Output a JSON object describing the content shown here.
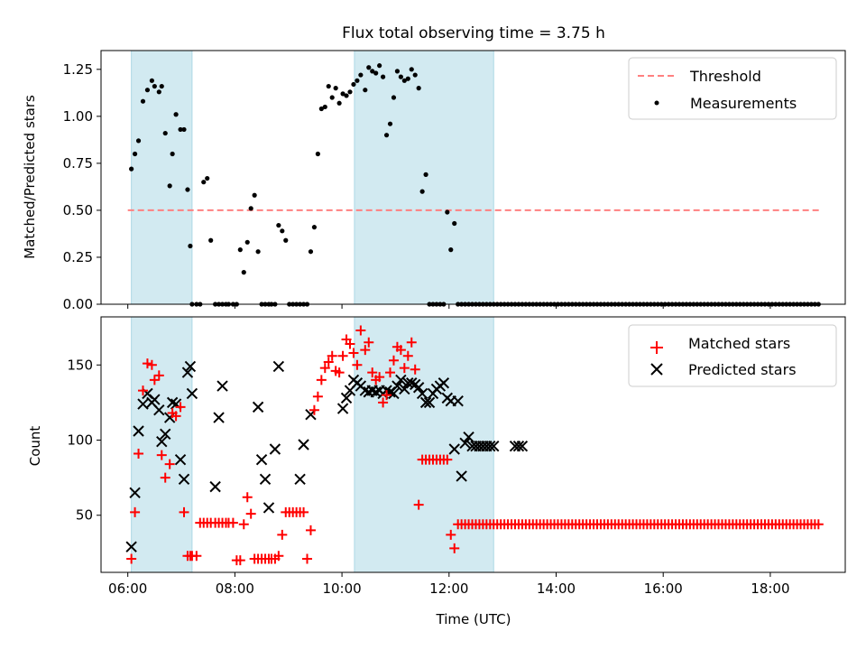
{
  "title": "Flux total observing time = 3.75 h",
  "colors": {
    "band": "#add8e6",
    "threshold": "#ff8080",
    "measurement": "#000000",
    "matched": "#ff0000",
    "predicted": "#000000"
  },
  "chart_data": [
    {
      "type": "scatter",
      "ylabel": "Matched/Predicted stars",
      "xlim_hours": [
        5.5,
        19.4
      ],
      "ylim": [
        0.0,
        1.35
      ],
      "yticks": [
        0.0,
        0.25,
        0.5,
        0.75,
        1.0,
        1.25
      ],
      "ytick_labels": [
        "0.00",
        "0.25",
        "0.50",
        "0.75",
        "1.00",
        "1.25"
      ],
      "grid": false,
      "legend_position": "upper-right",
      "legend": [
        "Threshold",
        "Measurements"
      ],
      "threshold": {
        "name": "Threshold",
        "y": 0.5,
        "x_from": "06:00",
        "x_to": "18:56"
      },
      "shaded_intervals": [
        [
          "06:04",
          "07:12"
        ],
        [
          "10:14",
          "12:50"
        ]
      ],
      "series": [
        {
          "name": "Measurements",
          "x": [
            "06:04",
            "06:08",
            "06:12",
            "06:17",
            "06:22",
            "06:27",
            "06:30",
            "06:35",
            "06:38",
            "06:42",
            "06:47",
            "06:50",
            "06:54",
            "06:59",
            "07:03",
            "07:07",
            "07:10",
            "07:12",
            "07:17",
            "07:21",
            "07:25",
            "07:29",
            "07:33",
            "07:38",
            "07:42",
            "07:46",
            "07:50",
            "07:53",
            "07:58",
            "08:02",
            "08:06",
            "08:10",
            "08:14",
            "08:18",
            "08:22",
            "08:26",
            "08:30",
            "08:34",
            "08:38",
            "08:41",
            "08:45",
            "08:49",
            "08:53",
            "08:57",
            "09:01",
            "09:05",
            "09:09",
            "09:13",
            "09:17",
            "09:21",
            "09:25",
            "09:29",
            "09:33",
            "09:37",
            "09:41",
            "09:45",
            "09:49",
            "09:53",
            "09:57",
            "10:01",
            "10:05",
            "10:09",
            "10:13",
            "10:17",
            "10:21",
            "10:26",
            "10:30",
            "10:34",
            "10:38",
            "10:42",
            "10:46",
            "10:50",
            "10:54",
            "10:58",
            "11:02",
            "11:06",
            "11:10",
            "11:14",
            "11:18",
            "11:22",
            "11:26",
            "11:30",
            "11:34",
            "11:38",
            "11:42",
            "11:46",
            "11:50",
            "11:54",
            "11:58",
            "12:02",
            "12:06",
            "12:10",
            "12:14",
            "12:18",
            "12:22",
            "12:26",
            "12:30",
            "12:34",
            "12:38",
            "12:42",
            "12:46",
            "12:50",
            "12:54",
            "12:58",
            "13:02",
            "13:06",
            "13:10",
            "13:14",
            "13:18",
            "13:22",
            "13:26"
          ],
          "y": [
            0.72,
            0.8,
            0.87,
            1.08,
            1.14,
            1.19,
            1.16,
            1.13,
            1.16,
            0.91,
            0.63,
            0.8,
            1.01,
            0.93,
            0.93,
            0.61,
            0.31,
            0.0,
            0.0,
            0.0,
            0.65,
            0.67,
            0.34,
            0.0,
            0.0,
            0.0,
            0.0,
            0.0,
            0.0,
            0.0,
            0.29,
            0.17,
            0.33,
            0.51,
            0.58,
            0.28,
            0.0,
            0.0,
            0.0,
            0.0,
            0.0,
            0.42,
            0.39,
            0.34,
            0.0,
            0.0,
            0.0,
            0.0,
            0.0,
            0.0,
            0.28,
            0.41,
            0.8,
            1.04,
            1.05,
            1.16,
            1.1,
            1.15,
            1.07,
            1.12,
            1.11,
            1.13,
            1.17,
            1.19,
            1.22,
            1.14,
            1.26,
            1.24,
            1.23,
            1.27,
            1.21,
            0.9,
            0.96,
            1.1,
            1.24,
            1.21,
            1.19,
            1.2,
            1.25,
            1.22,
            1.15,
            0.6,
            0.69,
            0.0,
            0.0,
            0.0,
            0.0,
            0.0,
            0.49,
            0.29,
            0.43,
            0.0,
            0.0,
            0.0,
            0.0,
            0.0,
            0.0,
            0.0,
            0.0,
            0.0,
            0.0,
            0.0,
            0.0,
            0.0,
            0.0,
            0.0,
            0.0,
            0.0,
            0.0,
            0.0,
            0.0
          ]
        }
      ],
      "zero_run": {
        "name": "Measurements",
        "y": 0.0,
        "x_from": "13:26",
        "x_to": "18:56",
        "step_minutes": 4
      }
    },
    {
      "type": "scatter",
      "xlabel": "Time (UTC)",
      "ylabel": "Count",
      "xlim_hours": [
        5.5,
        19.4
      ],
      "ylim": [
        12,
        182
      ],
      "yticks": [
        50,
        100,
        150
      ],
      "ytick_labels": [
        "50",
        "100",
        "150"
      ],
      "xticks": [
        "06:00",
        "08:00",
        "10:00",
        "12:00",
        "14:00",
        "16:00",
        "18:00"
      ],
      "grid": false,
      "legend_position": "upper-right",
      "legend": [
        "Matched stars",
        "Predicted stars"
      ],
      "shaded_intervals": [
        [
          "06:04",
          "07:12"
        ],
        [
          "10:14",
          "12:50"
        ]
      ],
      "series": [
        {
          "name": "Matched stars",
          "marker": "plus",
          "x": [
            "06:04",
            "06:08",
            "06:12",
            "06:17",
            "06:22",
            "06:27",
            "06:30",
            "06:35",
            "06:38",
            "06:42",
            "06:47",
            "06:50",
            "06:54",
            "06:59",
            "07:03",
            "07:07",
            "07:10",
            "07:12",
            "07:17",
            "07:21",
            "07:25",
            "07:29",
            "07:33",
            "07:38",
            "07:42",
            "07:46",
            "07:50",
            "07:53",
            "07:58",
            "08:02",
            "08:06",
            "08:10",
            "08:14",
            "08:18",
            "08:22",
            "08:26",
            "08:30",
            "08:34",
            "08:38",
            "08:41",
            "08:45",
            "08:49",
            "08:53",
            "08:57",
            "09:01",
            "09:05",
            "09:09",
            "09:13",
            "09:17",
            "09:21",
            "09:25",
            "09:29",
            "09:33",
            "09:37",
            "09:41",
            "09:45",
            "09:49",
            "09:53",
            "09:57",
            "10:01",
            "10:05",
            "10:09",
            "10:13",
            "10:17",
            "10:21",
            "10:26",
            "10:30",
            "10:34",
            "10:38",
            "10:42",
            "10:46",
            "10:50",
            "10:54",
            "10:58",
            "11:02",
            "11:06",
            "11:10",
            "11:14",
            "11:18",
            "11:22",
            "11:26",
            "11:30",
            "11:34",
            "11:38",
            "11:42",
            "11:46",
            "11:50",
            "11:54",
            "11:58",
            "12:02",
            "12:06",
            "12:10",
            "12:14",
            "12:18",
            "12:22",
            "12:26",
            "12:30",
            "12:34",
            "12:38",
            "12:42",
            "12:46",
            "12:50",
            "12:54",
            "12:58",
            "13:02",
            "13:06",
            "13:10",
            "13:14",
            "13:18",
            "13:22",
            "13:26"
          ],
          "y": [
            21,
            52,
            91,
            133,
            151,
            150,
            140,
            143,
            90,
            75,
            84,
            118,
            116,
            122,
            52,
            23,
            23,
            23,
            23,
            45,
            45,
            45,
            45,
            45,
            45,
            45,
            45,
            45,
            45,
            20,
            20,
            44,
            62,
            51,
            21,
            21,
            21,
            21,
            21,
            21,
            21,
            23,
            37,
            52,
            52,
            52,
            52,
            52,
            52,
            21,
            40,
            120,
            129,
            140,
            148,
            152,
            156,
            146,
            145,
            156,
            167,
            164,
            158,
            150,
            173,
            160,
            165,
            145,
            140,
            142,
            125,
            130,
            145,
            153,
            162,
            160,
            148,
            156,
            165,
            147,
            57,
            87,
            87,
            87,
            87,
            87,
            87,
            87,
            87,
            37,
            28,
            44,
            44,
            44,
            44,
            44,
            44,
            44,
            44,
            44,
            44,
            44,
            44,
            44,
            44,
            44,
            44,
            44,
            44,
            44,
            44
          ]
        },
        {
          "name": "Predicted stars",
          "marker": "x",
          "x": [
            "06:04",
            "06:08",
            "06:12",
            "06:17",
            "06:22",
            "06:27",
            "06:30",
            "06:35",
            "06:38",
            "06:42",
            "06:47",
            "06:50",
            "06:54",
            "06:59",
            "07:03",
            "07:07",
            "07:10",
            "07:12",
            "07:38",
            "07:42",
            "07:46",
            "08:26",
            "08:30",
            "08:34",
            "08:38",
            "08:45",
            "08:49",
            "09:13",
            "09:17",
            "09:25",
            "10:01",
            "10:05",
            "10:09",
            "10:13",
            "10:17",
            "10:21",
            "10:26",
            "10:30",
            "10:34",
            "10:38",
            "10:42",
            "10:46",
            "10:50",
            "10:54",
            "10:58",
            "11:02",
            "11:06",
            "11:10",
            "11:14",
            "11:18",
            "11:22",
            "11:26",
            "11:30",
            "11:34",
            "11:38",
            "11:42",
            "11:46",
            "11:50",
            "11:54",
            "11:58",
            "12:02",
            "12:06",
            "12:10",
            "12:14",
            "12:18",
            "12:22",
            "12:26",
            "12:30",
            "12:34",
            "12:38",
            "12:42",
            "12:46",
            "12:50",
            "13:14",
            "13:18",
            "13:22"
          ],
          "y": [
            29,
            65,
            106,
            124,
            131,
            125,
            127,
            120,
            99,
            104,
            115,
            125,
            124,
            87,
            74,
            145,
            149,
            131,
            69,
            115,
            136,
            122,
            87,
            74,
            55,
            94,
            149,
            74,
            97,
            117,
            121,
            128,
            133,
            140,
            138,
            136,
            133,
            132,
            133,
            132,
            133,
            131,
            133,
            132,
            131,
            136,
            140,
            134,
            138,
            138,
            137,
            135,
            131,
            125,
            125,
            131,
            134,
            136,
            138,
            128,
            126,
            94,
            126,
            76,
            98,
            102,
            96,
            96,
            96,
            96,
            96,
            96,
            96,
            96,
            96,
            96
          ]
        }
      ],
      "zero_run": {
        "name": "Matched stars",
        "y": 44,
        "x_from": "13:26",
        "x_to": "18:56",
        "step_minutes": 4
      }
    }
  ]
}
